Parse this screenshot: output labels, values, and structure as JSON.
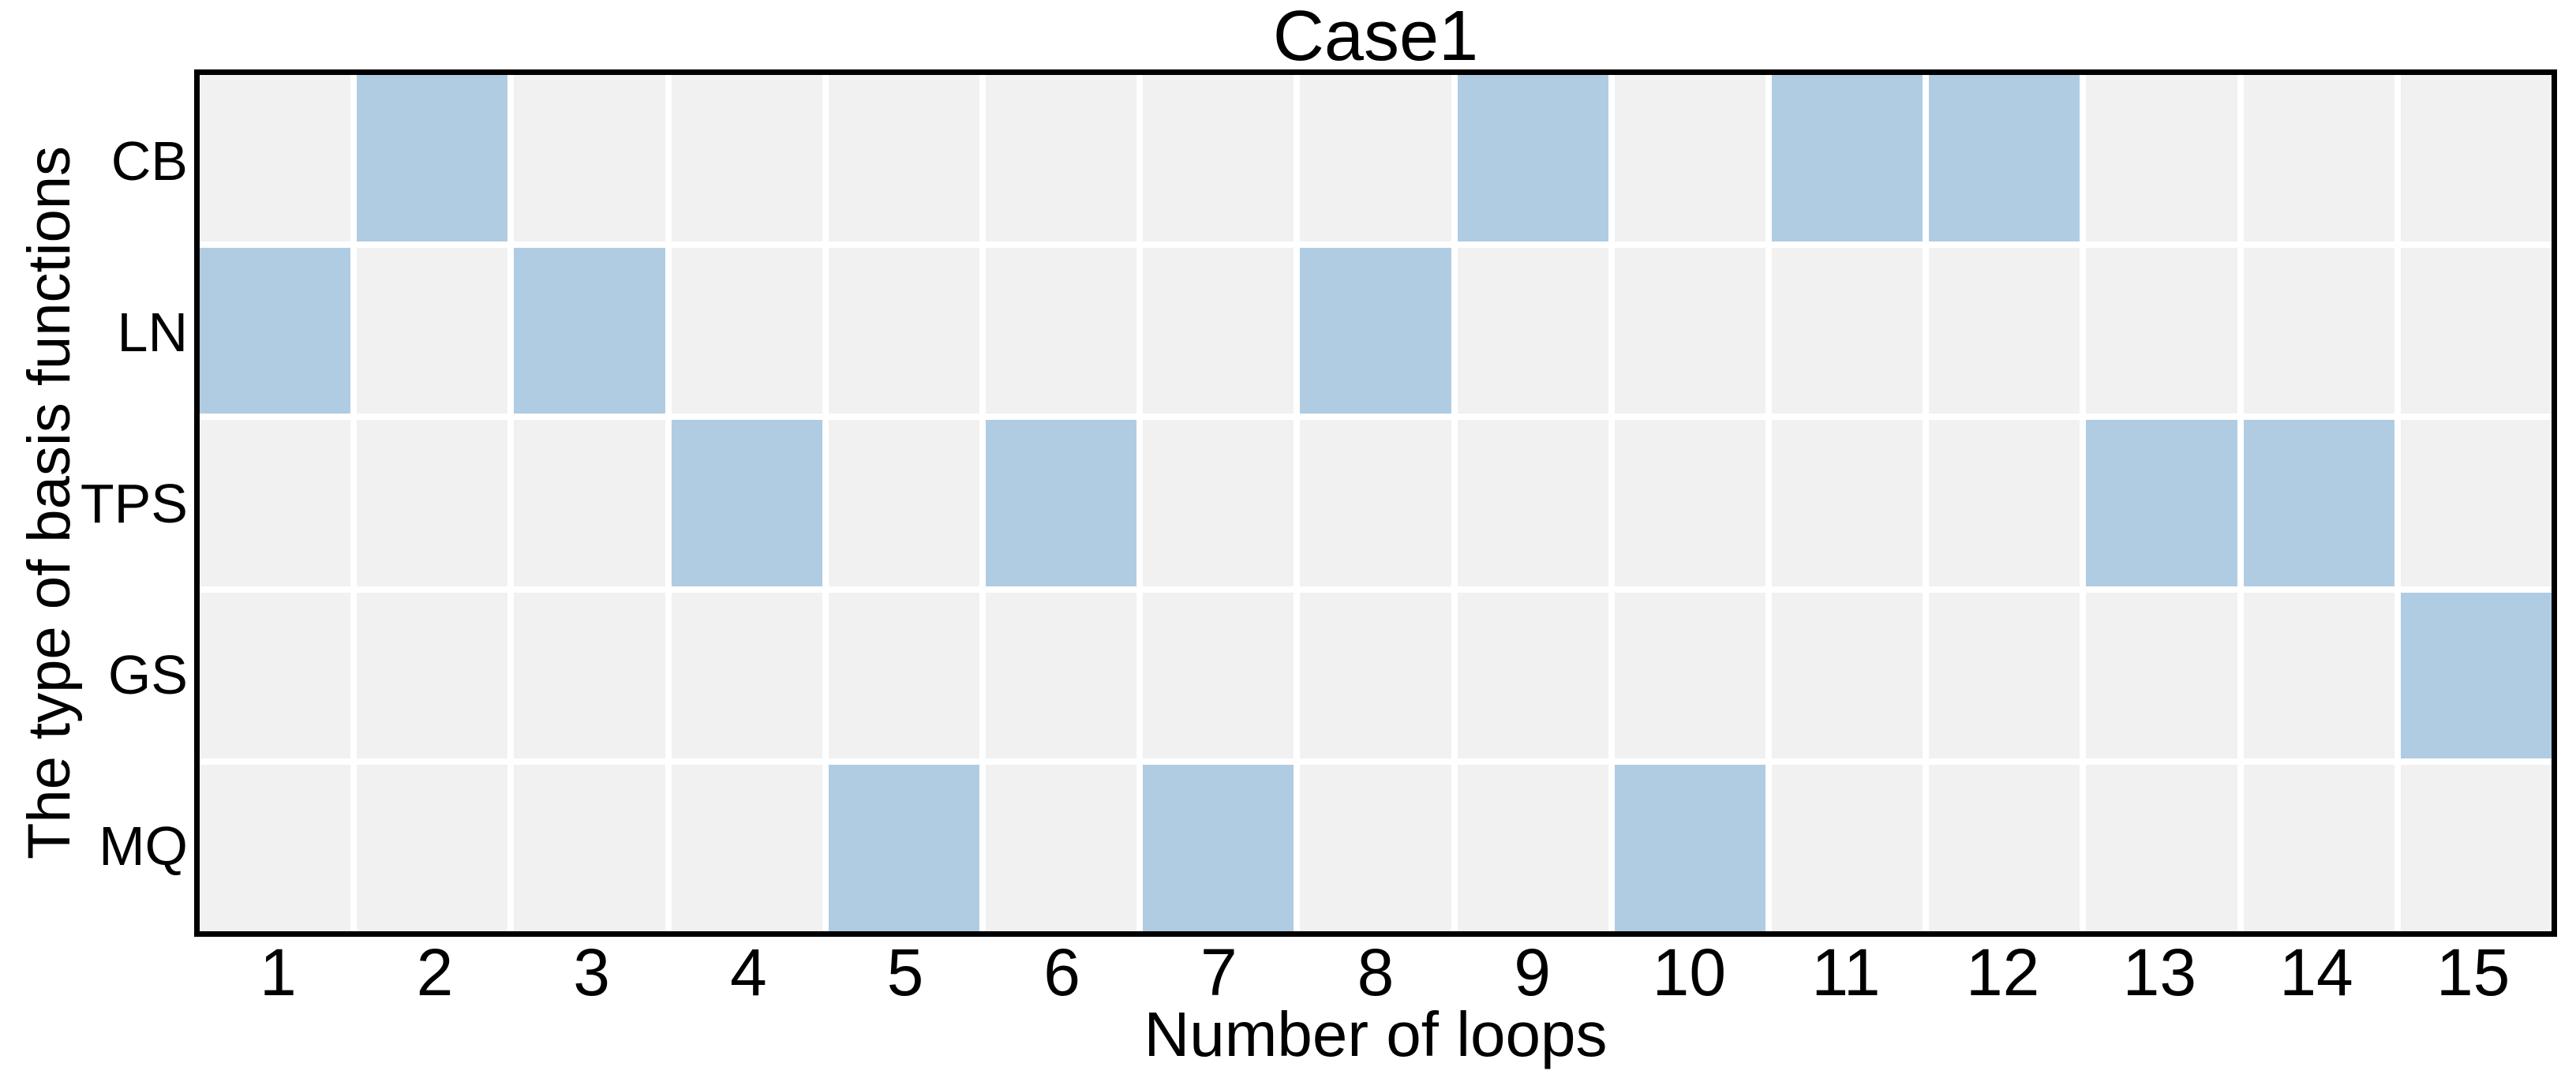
{
  "title": "Case1",
  "chart_data": {
    "type": "heatmap",
    "title": "Case1",
    "xlabel": "Number of loops",
    "ylabel": "The type of basis functions",
    "x_categories": [
      "1",
      "2",
      "3",
      "4",
      "5",
      "6",
      "7",
      "8",
      "9",
      "10",
      "11",
      "12",
      "13",
      "14",
      "15"
    ],
    "y_categories": [
      "CB",
      "LN",
      "TPS",
      "GS",
      "MQ"
    ],
    "matrix": [
      [
        0,
        1,
        0,
        0,
        0,
        0,
        0,
        0,
        1,
        0,
        1,
        1,
        0,
        0,
        0
      ],
      [
        1,
        0,
        1,
        0,
        0,
        0,
        0,
        1,
        0,
        0,
        0,
        0,
        0,
        0,
        0
      ],
      [
        0,
        0,
        0,
        1,
        0,
        1,
        0,
        0,
        0,
        0,
        0,
        0,
        1,
        1,
        0
      ],
      [
        0,
        0,
        0,
        0,
        0,
        0,
        0,
        0,
        0,
        0,
        0,
        0,
        0,
        0,
        1
      ],
      [
        0,
        0,
        0,
        0,
        1,
        0,
        1,
        0,
        0,
        1,
        0,
        0,
        0,
        0,
        0
      ]
    ],
    "selected_loops_by_type": {
      "CB": [
        2,
        9,
        11,
        12
      ],
      "LN": [
        1,
        3,
        8
      ],
      "TPS": [
        4,
        6,
        13,
        14
      ],
      "GS": [
        15
      ],
      "MQ": [
        5,
        7,
        10
      ]
    },
    "colors": {
      "highlight": "#b0cce3",
      "empty": "#f1f1f1",
      "grid_gap": "#ffffff",
      "spine": "#000000",
      "text": "#000000"
    },
    "legend": "none",
    "grid": "white cell separators, ~8px",
    "value_encoding": "1 = selected basis function for that loop (blue), 0 = not selected (grey)"
  }
}
